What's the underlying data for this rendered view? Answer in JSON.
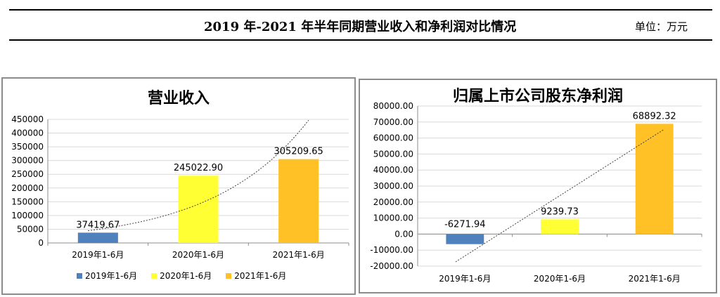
{
  "header": {
    "title": "2019 年-2021 年半年同期营业收入和净利润对比情况",
    "unit": "单位：万元"
  },
  "colors": {
    "series_2019": "#4f81bd",
    "series_2020": "#ffff33",
    "series_2021": "#ffc125"
  },
  "chart_data": [
    {
      "type": "bar",
      "title": "营业收入",
      "categories": [
        "2019年1-6月",
        "2020年1-6月",
        "2021年1-6月"
      ],
      "values": [
        37419.67,
        245022.9,
        305209.65
      ],
      "value_labels": [
        "37419.67",
        "245022.90",
        "305209.65"
      ],
      "ylim": [
        0,
        450000
      ],
      "yticks": [
        0,
        50000,
        100000,
        150000,
        200000,
        250000,
        300000,
        350000,
        400000,
        450000
      ],
      "ytick_labels": [
        "0",
        "50000",
        "100000",
        "150000",
        "200000",
        "250000",
        "300000",
        "350000",
        "400000",
        "450000"
      ],
      "trendline": "exponential",
      "legend": [
        "2019年1-6月",
        "2020年1-6月",
        "2021年1-6月"
      ],
      "legend_position": "bottom",
      "grid": true
    },
    {
      "type": "bar",
      "title": "归属上市公司股东净利润",
      "categories": [
        "2019年1-6月",
        "2020年1-6月",
        "2021年1-6月"
      ],
      "values": [
        -6271.94,
        9239.73,
        68892.32
      ],
      "value_labels": [
        "-6271.94",
        "9239.73",
        "68892.32"
      ],
      "ylim": [
        -20000,
        80000
      ],
      "yticks": [
        -20000,
        -10000,
        0,
        10000,
        20000,
        30000,
        40000,
        50000,
        60000,
        70000,
        80000
      ],
      "ytick_labels": [
        "-20000.00",
        "-10000.00",
        "0.00",
        "10000.00",
        "20000.00",
        "30000.00",
        "40000.00",
        "50000.00",
        "60000.00",
        "70000.00",
        "80000.00"
      ],
      "trendline": "linear",
      "grid": true
    }
  ]
}
